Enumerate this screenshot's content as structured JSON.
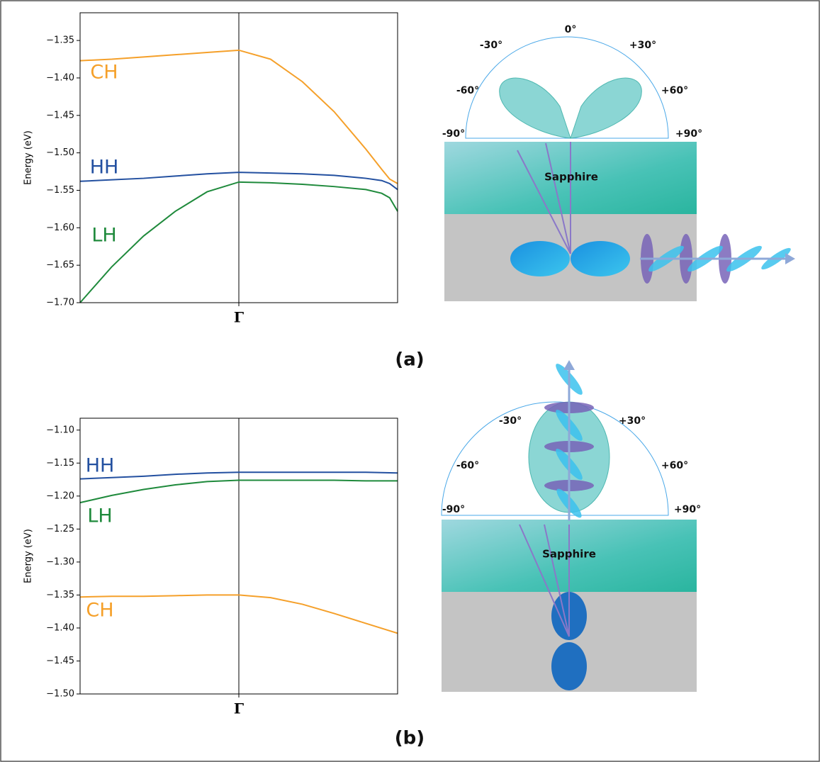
{
  "chart_data": [
    {
      "type": "line",
      "y_label": "Energy (eV)",
      "x": [
        -1,
        -0.8,
        -0.6,
        -0.4,
        -0.2,
        0,
        0.2,
        0.4,
        0.6,
        0.8,
        0.9,
        0.95,
        1
      ],
      "xlim": [
        -1,
        1
      ],
      "xticks": [
        {
          "value": 0,
          "label": "Γ"
        }
      ],
      "ylim": [
        -1.7,
        -1.313
      ],
      "yticks": [
        {
          "value": -1.7,
          "label": "−1.70"
        },
        {
          "value": -1.65,
          "label": "−1.65"
        },
        {
          "value": -1.6,
          "label": "−1.60"
        },
        {
          "value": -1.55,
          "label": "−1.55"
        },
        {
          "value": -1.5,
          "label": "−1.50"
        },
        {
          "value": -1.45,
          "label": "−1.45"
        },
        {
          "value": -1.4,
          "label": "−1.40"
        },
        {
          "value": -1.35,
          "label": "−1.35"
        }
      ],
      "series": [
        {
          "name": "CH",
          "color": "#f5a02a",
          "values": [
            -1.377,
            -1.375,
            -1.372,
            -1.369,
            -1.366,
            -1.363,
            -1.375,
            -1.405,
            -1.445,
            -1.495,
            -1.522,
            -1.535,
            -1.541
          ]
        },
        {
          "name": "HH",
          "color": "#2350a0",
          "values": [
            -1.538,
            -1.536,
            -1.534,
            -1.531,
            -1.528,
            -1.526,
            -1.527,
            -1.528,
            -1.53,
            -1.534,
            -1.537,
            -1.541,
            -1.549
          ]
        },
        {
          "name": "LH",
          "color": "#1f8a3c",
          "values": [
            -1.7,
            -1.652,
            -1.611,
            -1.578,
            -1.552,
            -1.539,
            -1.54,
            -1.542,
            -1.545,
            -1.549,
            -1.554,
            -1.56,
            -1.578
          ]
        }
      ]
    },
    {
      "type": "line",
      "y_label": "Energy (eV)",
      "x": [
        -1,
        -0.8,
        -0.6,
        -0.4,
        -0.2,
        0,
        0.2,
        0.4,
        0.6,
        0.8,
        1
      ],
      "xlim": [
        -1,
        1
      ],
      "xticks": [
        {
          "value": 0,
          "label": "Γ"
        }
      ],
      "ylim": [
        -1.5,
        -1.082
      ],
      "yticks": [
        {
          "value": -1.5,
          "label": "−1.50"
        },
        {
          "value": -1.45,
          "label": "−1.45"
        },
        {
          "value": -1.4,
          "label": "−1.40"
        },
        {
          "value": -1.35,
          "label": "−1.35"
        },
        {
          "value": -1.3,
          "label": "−1.30"
        },
        {
          "value": -1.25,
          "label": "−1.25"
        },
        {
          "value": -1.2,
          "label": "−1.20"
        },
        {
          "value": -1.15,
          "label": "−1.15"
        },
        {
          "value": -1.1,
          "label": "−1.10"
        }
      ],
      "series": [
        {
          "name": "HH",
          "color": "#2350a0",
          "values": [
            -1.174,
            -1.172,
            -1.17,
            -1.167,
            -1.165,
            -1.164,
            -1.164,
            -1.164,
            -1.164,
            -1.164,
            -1.165
          ]
        },
        {
          "name": "LH",
          "color": "#1f8a3c",
          "values": [
            -1.21,
            -1.199,
            -1.19,
            -1.183,
            -1.178,
            -1.176,
            -1.176,
            -1.176,
            -1.176,
            -1.177,
            -1.177
          ]
        },
        {
          "name": "CH",
          "color": "#f5a02a",
          "values": [
            -1.353,
            -1.352,
            -1.352,
            -1.351,
            -1.35,
            -1.35,
            -1.354,
            -1.364,
            -1.378,
            -1.393,
            -1.408
          ]
        }
      ]
    }
  ],
  "panels": [
    {
      "label": "(a)",
      "diagram": {
        "substrate": "Sapphire",
        "angle_labels": [
          "0°",
          "-30°",
          "+30°",
          "-60°",
          "+60°",
          "-90°",
          "+90°"
        ]
      }
    },
    {
      "label": "(b)",
      "diagram": {
        "substrate": "Sapphire",
        "angle_labels": [
          "-30°",
          "+30°",
          "-60°",
          "+60°",
          "-90°",
          "+90°"
        ]
      }
    }
  ]
}
